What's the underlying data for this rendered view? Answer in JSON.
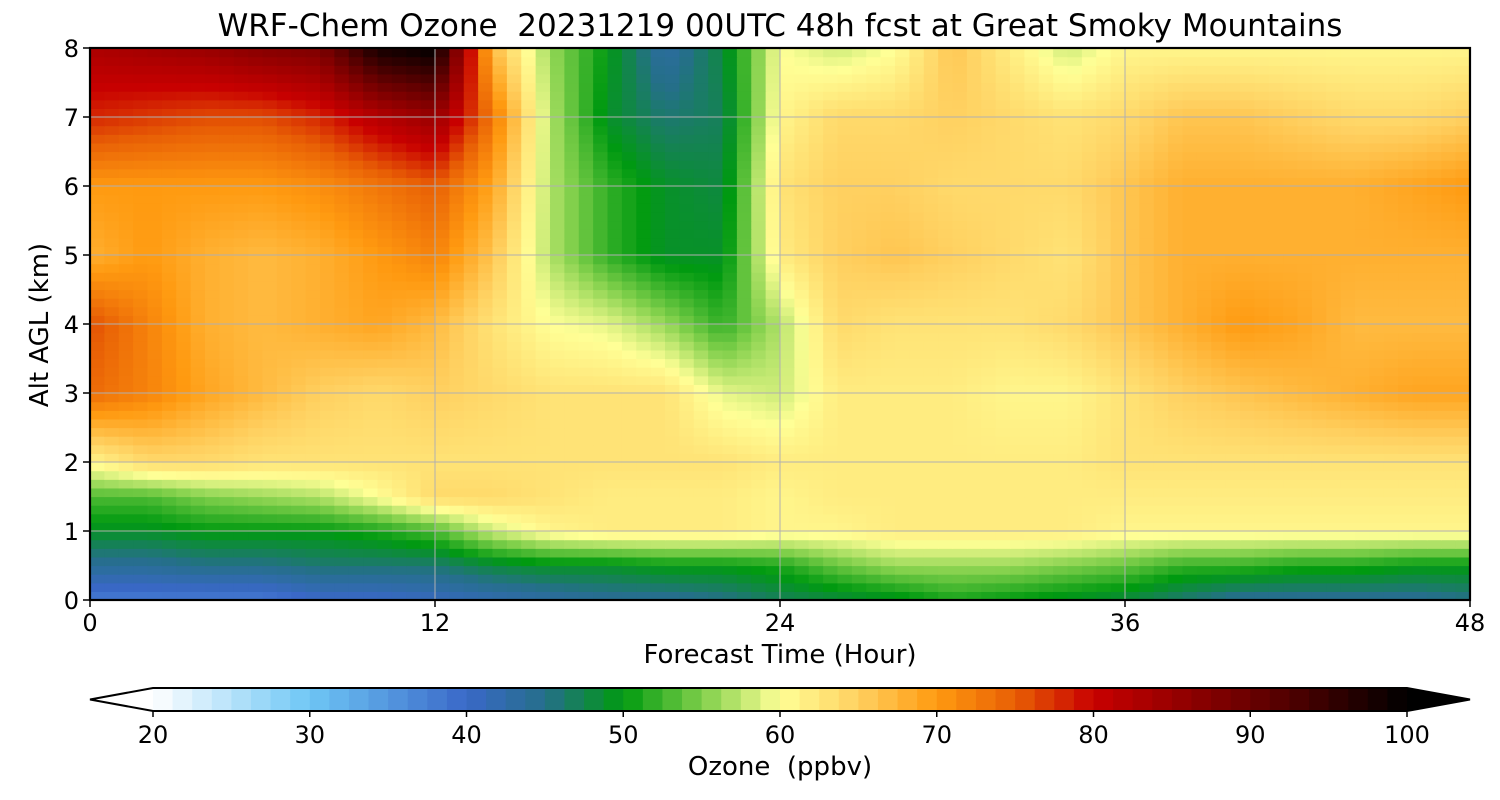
{
  "chart_data": {
    "type": "heatmap",
    "title": "WRF-Chem Ozone  20231219 00UTC 48h fcst at Great Smoky Mountains",
    "xlabel": "Forecast Time (Hour)",
    "ylabel": "Alt AGL (km)",
    "xlim": [
      0,
      48
    ],
    "ylim": [
      0,
      8
    ],
    "xticks": [
      0,
      12,
      24,
      36,
      48
    ],
    "yticks": [
      0,
      1,
      2,
      3,
      4,
      5,
      6,
      7,
      8
    ],
    "grid": true,
    "colorbar": {
      "label": "Ozone  (ppbv)",
      "range": [
        20,
        100
      ],
      "ticks": [
        20,
        30,
        40,
        50,
        60,
        70,
        80,
        90,
        100
      ],
      "extend": "both",
      "stops": [
        {
          "v": 20,
          "color": "#ffffff"
        },
        {
          "v": 30,
          "color": "#6ec6f5"
        },
        {
          "v": 40,
          "color": "#3a68c8"
        },
        {
          "v": 45,
          "color": "#256f8a"
        },
        {
          "v": 50,
          "color": "#009a10"
        },
        {
          "v": 55,
          "color": "#7fcf4a"
        },
        {
          "v": 60,
          "color": "#ffff96"
        },
        {
          "v": 65,
          "color": "#ffd060"
        },
        {
          "v": 70,
          "color": "#ff9a10"
        },
        {
          "v": 75,
          "color": "#e85f05"
        },
        {
          "v": 80,
          "color": "#c80000"
        },
        {
          "v": 90,
          "color": "#6a0000"
        },
        {
          "v": 100,
          "color": "#000000"
        }
      ]
    },
    "hours": [
      0,
      2,
      4,
      6,
      8,
      10,
      12,
      14,
      16,
      18,
      20,
      22,
      24,
      26,
      28,
      30,
      32,
      34,
      36,
      38,
      40,
      42,
      44,
      46,
      48
    ],
    "altitudes_km": [
      0,
      0.5,
      1,
      1.5,
      2,
      3,
      4,
      5,
      6,
      7,
      8
    ],
    "ozone_ppbv": [
      [
        38,
        38,
        38,
        38,
        40,
        40,
        41,
        42,
        43,
        44,
        44,
        45,
        47,
        48,
        49,
        51,
        50,
        49,
        48,
        46,
        44,
        44,
        44,
        44,
        45
      ],
      [
        44,
        44,
        45,
        45,
        46,
        46,
        46,
        48,
        49,
        49,
        50,
        50,
        51,
        54,
        56,
        56,
        56,
        55,
        54,
        52,
        52,
        51,
        51,
        50,
        50
      ],
      [
        49,
        49,
        50,
        50,
        50,
        51,
        53,
        58,
        61,
        62,
        62,
        62,
        61,
        61,
        62,
        62,
        62,
        62,
        61,
        61,
        61,
        61,
        61,
        61,
        61
      ],
      [
        53,
        53,
        55,
        56,
        57,
        60,
        64,
        64,
        63,
        62,
        62,
        62,
        61,
        62,
        62,
        62,
        62,
        62,
        62,
        62,
        62,
        62,
        62,
        62,
        62
      ],
      [
        61,
        64,
        64,
        63,
        63,
        63,
        63,
        63,
        63,
        63,
        63,
        63,
        62,
        62,
        62,
        62,
        62,
        62,
        63,
        63,
        63,
        63,
        63,
        63,
        63
      ],
      [
        74,
        72,
        69,
        67,
        65,
        64,
        65,
        64,
        63,
        63,
        63,
        59,
        58,
        62,
        62,
        62,
        61,
        61,
        63,
        65,
        66,
        67,
        68,
        69,
        69
      ],
      [
        76,
        72,
        68,
        67,
        68,
        69,
        67,
        63,
        60,
        59,
        56,
        52,
        57,
        64,
        63,
        63,
        63,
        64,
        66,
        68,
        70,
        69,
        67,
        67,
        67
      ],
      [
        68,
        70,
        68,
        67,
        68,
        70,
        72,
        66,
        57,
        52,
        49,
        49,
        62,
        65,
        66,
        65,
        64,
        63,
        66,
        68,
        68,
        68,
        68,
        68,
        68
      ],
      [
        70,
        70,
        70,
        70,
        71,
        73,
        75,
        69,
        57,
        52,
        49,
        48,
        63,
        65,
        65,
        64,
        64,
        64,
        66,
        68,
        68,
        68,
        68,
        69,
        70
      ],
      [
        78,
        77,
        76,
        76,
        78,
        82,
        85,
        73,
        57,
        49,
        46,
        47,
        61,
        64,
        64,
        65,
        64,
        63,
        64,
        66,
        66,
        65,
        64,
        64,
        65
      ],
      [
        83,
        84,
        85,
        87,
        88,
        98,
        100,
        67,
        56,
        50,
        43,
        48,
        60,
        58,
        60,
        66,
        62,
        58,
        61,
        61,
        61,
        61,
        61,
        61,
        61
      ]
    ]
  }
}
